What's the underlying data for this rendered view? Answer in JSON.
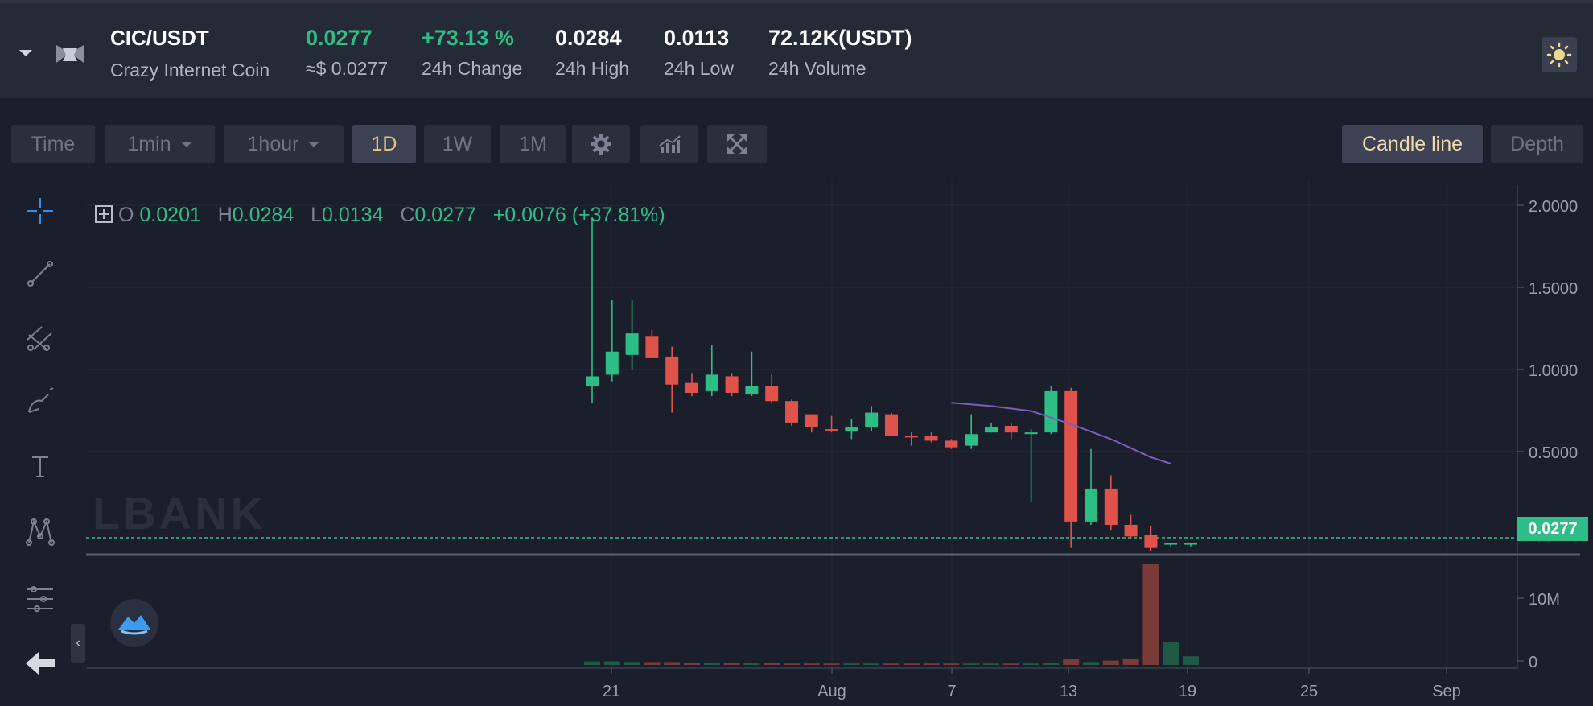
{
  "header": {
    "pair": "CIC/USDT",
    "coin_name": "Crazy Internet Coin",
    "price": "0.0277",
    "price_usd": "≈$ 0.0277",
    "change": "+73.13 %",
    "change_label": "24h Change",
    "high": "0.0284",
    "high_label": "24h High",
    "low": "0.0113",
    "low_label": "24h Low",
    "volume": "72.12K(USDT)",
    "volume_label": "24h Volume"
  },
  "toolbar": {
    "time": "Time",
    "min_select": "1min",
    "hour_select": "1hour",
    "day": "1D",
    "week": "1W",
    "month": "1M",
    "candle_line": "Candle line",
    "depth": "Depth"
  },
  "legend": {
    "o_label": "O",
    "o": "0.0201",
    "h_label": "H",
    "h": "0.0284",
    "l_label": "L",
    "l": "0.0134",
    "c_label": "C",
    "c": "0.0277",
    "change": "+0.0076 (+37.81%)"
  },
  "watermark": "LBANK",
  "current_price": "0.0277",
  "colors": {
    "up": "#2ebd85",
    "down": "#e0534a",
    "accent": "#e8c27a",
    "ma": "#7b5cbf"
  },
  "chart_data": {
    "type": "candlestick",
    "price_axis": [
      "2.0000",
      "1.5000",
      "1.0000",
      "0.5000"
    ],
    "volume_axis": [
      "10M",
      "0"
    ],
    "x_ticks": [
      "21",
      "Aug",
      "7",
      "13",
      "19",
      "25",
      "Sep"
    ],
    "candles": [
      {
        "o": 0.98,
        "h": 2.0,
        "l": 0.88,
        "c": 1.04
      },
      {
        "o": 1.05,
        "h": 1.5,
        "l": 1.01,
        "c": 1.19
      },
      {
        "o": 1.17,
        "h": 1.5,
        "l": 1.08,
        "c": 1.3
      },
      {
        "o": 1.28,
        "h": 1.32,
        "l": 1.15,
        "c": 1.15
      },
      {
        "o": 1.16,
        "h": 1.22,
        "l": 0.82,
        "c": 0.99
      },
      {
        "o": 1.0,
        "h": 1.06,
        "l": 0.92,
        "c": 0.94
      },
      {
        "o": 0.95,
        "h": 1.23,
        "l": 0.92,
        "c": 1.05
      },
      {
        "o": 1.04,
        "h": 1.06,
        "l": 0.92,
        "c": 0.94
      },
      {
        "o": 0.93,
        "h": 1.19,
        "l": 0.92,
        "c": 0.98
      },
      {
        "o": 0.98,
        "h": 1.05,
        "l": 0.88,
        "c": 0.89
      },
      {
        "o": 0.89,
        "h": 0.9,
        "l": 0.74,
        "c": 0.76
      },
      {
        "o": 0.81,
        "h": 0.81,
        "l": 0.7,
        "c": 0.73
      },
      {
        "o": 0.72,
        "h": 0.8,
        "l": 0.7,
        "c": 0.71
      },
      {
        "o": 0.71,
        "h": 0.78,
        "l": 0.66,
        "c": 0.73
      },
      {
        "o": 0.73,
        "h": 0.86,
        "l": 0.71,
        "c": 0.82
      },
      {
        "o": 0.81,
        "h": 0.82,
        "l": 0.68,
        "c": 0.68
      },
      {
        "o": 0.68,
        "h": 0.7,
        "l": 0.62,
        "c": 0.67
      },
      {
        "o": 0.68,
        "h": 0.7,
        "l": 0.64,
        "c": 0.65
      },
      {
        "o": 0.65,
        "h": 0.66,
        "l": 0.6,
        "c": 0.61
      },
      {
        "o": 0.62,
        "h": 0.81,
        "l": 0.6,
        "c": 0.69
      },
      {
        "o": 0.7,
        "h": 0.76,
        "l": 0.7,
        "c": 0.73
      },
      {
        "o": 0.74,
        "h": 0.76,
        "l": 0.66,
        "c": 0.7
      },
      {
        "o": 0.7,
        "h": 0.72,
        "l": 0.28,
        "c": 0.7
      },
      {
        "o": 0.7,
        "h": 0.98,
        "l": 0.69,
        "c": 0.95
      },
      {
        "o": 0.95,
        "h": 0.97,
        "l": 0.0,
        "c": 0.16
      },
      {
        "o": 0.16,
        "h": 0.6,
        "l": 0.14,
        "c": 0.36
      },
      {
        "o": 0.36,
        "h": 0.44,
        "l": 0.11,
        "c": 0.14
      },
      {
        "o": 0.14,
        "h": 0.2,
        "l": 0.06,
        "c": 0.07
      },
      {
        "o": 0.08,
        "h": 0.13,
        "l": -0.02,
        "c": 0.0
      },
      {
        "o": 0.02,
        "h": 0.03,
        "l": 0.01,
        "c": 0.03
      },
      {
        "o": 0.02,
        "h": 0.03,
        "l": 0.01,
        "c": 0.03
      }
    ],
    "volumes": [
      0.5,
      0.5,
      0.4,
      0.4,
      0.4,
      0.3,
      0.3,
      0.3,
      0.3,
      0.3,
      0.2,
      0.2,
      0.2,
      0.2,
      0.2,
      0.2,
      0.2,
      0.2,
      0.2,
      0.2,
      0.2,
      0.2,
      0.2,
      0.3,
      0.8,
      0.4,
      0.6,
      0.9,
      14.0,
      3.2,
      1.2
    ],
    "ma_line": [
      {
        "i": 18,
        "v": 0.88
      },
      {
        "i": 20,
        "v": 0.86
      },
      {
        "i": 22,
        "v": 0.83
      },
      {
        "i": 24,
        "v": 0.75
      },
      {
        "i": 26,
        "v": 0.66
      },
      {
        "i": 28,
        "v": 0.55
      },
      {
        "i": 29,
        "v": 0.51
      }
    ]
  }
}
